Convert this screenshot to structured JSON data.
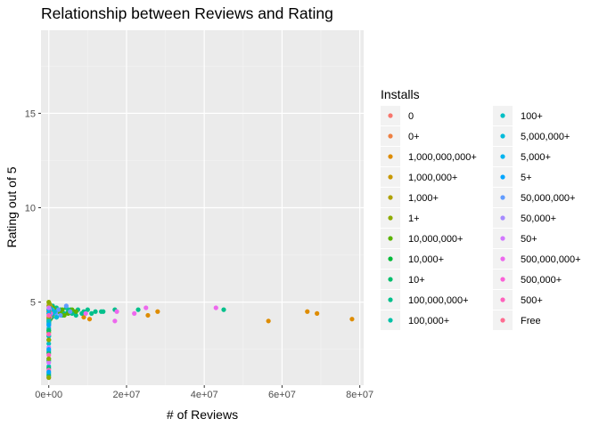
{
  "chart_data": {
    "type": "scatter",
    "title": "Relationship between Reviews and Rating",
    "xlabel": "# of Reviews",
    "ylabel": "Rating out of 5",
    "xlim": [
      -2000000,
      81000000
    ],
    "ylim": [
      0.6,
      19.4
    ],
    "x_ticks": [
      0,
      20000000,
      40000000,
      60000000,
      80000000
    ],
    "x_tick_labels": [
      "0e+00",
      "2e+07",
      "4e+07",
      "6e+07",
      "8e+07"
    ],
    "y_ticks": [
      5,
      10,
      15
    ],
    "y_tick_labels": [
      "5",
      "10",
      "15"
    ],
    "grid": true,
    "background": "#ebebeb",
    "legend": {
      "title": "Installs",
      "placement": "right",
      "entries": [
        {
          "label": "0",
          "color": "#F8766D"
        },
        {
          "label": "0+",
          "color": "#EE8043"
        },
        {
          "label": "1,000,000,000+",
          "color": "#DE8C00"
        },
        {
          "label": "1,000,000+",
          "color": "#C99800"
        },
        {
          "label": "1,000+",
          "color": "#AFA100"
        },
        {
          "label": "1+",
          "color": "#8EAB00"
        },
        {
          "label": "10,000,000+",
          "color": "#5BB300"
        },
        {
          "label": "10,000+",
          "color": "#00BA38"
        },
        {
          "label": "10+",
          "color": "#00BE6C"
        },
        {
          "label": "100,000,000+",
          "color": "#00C08B"
        },
        {
          "label": "100,000+",
          "color": "#00C1A7"
        },
        {
          "label": "100+",
          "color": "#00BFC4"
        },
        {
          "label": "5,000,000+",
          "color": "#00BBDA"
        },
        {
          "label": "5,000+",
          "color": "#00B4EF"
        },
        {
          "label": "5+",
          "color": "#00A5FF"
        },
        {
          "label": "50,000,000+",
          "color": "#619CFF"
        },
        {
          "label": "50,000+",
          "color": "#A58AFF"
        },
        {
          "label": "50+",
          "color": "#D277FF"
        },
        {
          "label": "500,000,000+",
          "color": "#ED68ED"
        },
        {
          "label": "500,000+",
          "color": "#FB61D7"
        },
        {
          "label": "500+",
          "color": "#FF62BC"
        },
        {
          "label": "Free",
          "color": "#FF6C91"
        }
      ]
    },
    "series": [
      {
        "name": "1,000,000,000+",
        "x": [
          78000000,
          69000000,
          66500000,
          56500000,
          28000000,
          25500000,
          10500000,
          9000000
        ],
        "y": [
          4.1,
          4.4,
          4.5,
          4.0,
          4.5,
          4.3,
          4.1,
          4.2
        ]
      },
      {
        "name": "100,000,000+",
        "x": [
          45000000,
          23000000,
          17000000,
          14000000,
          13500000,
          12000000,
          11000000,
          10000000,
          9000000,
          8500000,
          7500000,
          7000000,
          6500000,
          6000000,
          5500000,
          5000000,
          4500000,
          4000000,
          3500000,
          3000000,
          2500000,
          2000000,
          1500000,
          1000000,
          800000,
          500000
        ],
        "y": [
          4.6,
          4.6,
          4.6,
          4.5,
          4.5,
          4.5,
          4.4,
          4.6,
          4.5,
          4.4,
          4.6,
          4.3,
          4.5,
          4.4,
          4.6,
          4.5,
          4.7,
          4.4,
          4.3,
          4.6,
          4.5,
          4.7,
          4.4,
          4.8,
          4.2,
          4.6
        ]
      },
      {
        "name": "500,000,000+",
        "x": [
          43000000,
          25000000,
          22000000,
          17500000,
          17000000,
          9500000
        ],
        "y": [
          4.7,
          4.7,
          4.4,
          4.5,
          4.0,
          4.4
        ]
      },
      {
        "name": "10,000,000+",
        "x": [
          7000000,
          6000000,
          5000000,
          4000000,
          3500000,
          3000000,
          2500000,
          2000000,
          1500000,
          1200000,
          1000000,
          800000,
          600000,
          500000,
          400000,
          300000,
          200000
        ],
        "y": [
          4.5,
          4.6,
          4.4,
          4.3,
          4.6,
          4.4,
          4.5,
          4.2,
          4.6,
          4.4,
          4.7,
          4.3,
          4.5,
          4.6,
          4.1,
          4.8,
          4.9
        ]
      },
      {
        "name": "50,000,000+",
        "x": [
          5500000,
          4500000,
          3000000,
          2500000,
          1800000,
          1200000,
          900000
        ],
        "y": [
          4.5,
          4.8,
          4.3,
          4.6,
          4.4,
          4.5,
          4.6
        ]
      },
      {
        "name": "1,000,000+",
        "x": [
          900000,
          700000,
          500000,
          400000,
          300000,
          200000,
          100000,
          50000
        ],
        "y": [
          4.4,
          4.6,
          4.3,
          4.8,
          4.5,
          4.2,
          4.9,
          4.7
        ]
      },
      {
        "name": "5,000,000+",
        "x": [
          2000000,
          1500000,
          1000000,
          700000,
          500000,
          300000,
          150000
        ],
        "y": [
          4.2,
          4.5,
          4.4,
          4.6,
          4.3,
          4.7,
          4.1
        ]
      },
      {
        "name": "100,000+",
        "x": [
          300000,
          200000,
          150000,
          100000,
          50000,
          20000,
          10000
        ],
        "y": [
          4.5,
          4.3,
          4.6,
          4.0,
          4.8,
          3.8,
          4.4
        ]
      },
      {
        "name": "500,000+",
        "x": [
          500000,
          300000,
          200000,
          100000,
          50000
        ],
        "y": [
          4.4,
          4.2,
          4.6,
          4.3,
          4.5
        ]
      },
      {
        "name": "10,000+",
        "x": [
          50000,
          30000,
          20000,
          10000,
          5000,
          2000
        ],
        "y": [
          4.3,
          4.5,
          3.9,
          4.1,
          3.5,
          4.6
        ]
      },
      {
        "name": "50,000+",
        "x": [
          100000,
          60000,
          40000,
          20000,
          10000
        ],
        "y": [
          4.2,
          4.6,
          4.4,
          3.7,
          4.0
        ]
      },
      {
        "name": "1,000+",
        "x": [
          10000,
          5000,
          2000,
          1000,
          500
        ],
        "y": [
          4.5,
          4.2,
          3.4,
          4.0,
          4.8
        ]
      },
      {
        "name": "5,000+",
        "x": [
          20000,
          10000,
          5000,
          2000
        ],
        "y": [
          3.9,
          4.4,
          3.2,
          4.6
        ]
      },
      {
        "name": "100+",
        "x": [
          1000,
          500,
          200,
          100,
          50,
          20,
          10,
          5
        ],
        "y": [
          1.2,
          1.6,
          2.0,
          2.4,
          2.8,
          3.2,
          3.6,
          4.0
        ]
      },
      {
        "name": "10+",
        "x": [
          200,
          100,
          50,
          20,
          10,
          5
        ],
        "y": [
          1.1,
          1.5,
          1.9,
          2.3,
          3.0,
          3.5
        ]
      },
      {
        "name": "500+",
        "x": [
          500,
          200,
          100,
          50
        ],
        "y": [
          1.4,
          2.2,
          3.3,
          4.3
        ]
      },
      {
        "name": "50+",
        "x": [
          200,
          100,
          50,
          20
        ],
        "y": [
          1.0,
          1.8,
          2.6,
          4.7
        ]
      },
      {
        "name": "1+",
        "x": [
          10,
          5,
          2,
          1
        ],
        "y": [
          1.0,
          2.0,
          3.0,
          5.0
        ]
      },
      {
        "name": "5+",
        "x": [
          20,
          10,
          5
        ],
        "y": [
          1.3,
          2.5,
          3.8
        ]
      }
    ]
  }
}
